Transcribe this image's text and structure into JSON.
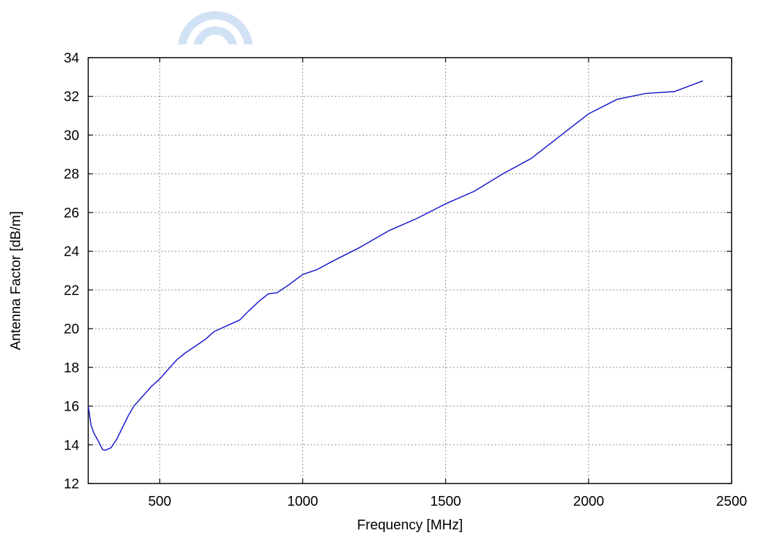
{
  "chart_data": {
    "type": "line",
    "title": "",
    "xlabel": "Frequency [MHz]",
    "ylabel": "Antenna Factor [dB/m]",
    "xlim": [
      250,
      2500
    ],
    "ylim": [
      12,
      34
    ],
    "xticks": [
      500,
      1000,
      1500,
      2000,
      2500
    ],
    "yticks": [
      12,
      14,
      16,
      18,
      20,
      22,
      24,
      26,
      28,
      30,
      32,
      34
    ],
    "grid": true,
    "legend": "none",
    "series": [
      {
        "color": "#1f1fcf",
        "points": [
          [
            250,
            16.0
          ],
          [
            260,
            15.0
          ],
          [
            270,
            14.6
          ],
          [
            285,
            14.2
          ],
          [
            300,
            13.75
          ],
          [
            310,
            13.72
          ],
          [
            330,
            13.85
          ],
          [
            350,
            14.3
          ],
          [
            370,
            14.9
          ],
          [
            390,
            15.5
          ],
          [
            410,
            16.0
          ],
          [
            440,
            16.5
          ],
          [
            470,
            17.0
          ],
          [
            500,
            17.4
          ],
          [
            530,
            17.9
          ],
          [
            560,
            18.4
          ],
          [
            590,
            18.75
          ],
          [
            620,
            19.05
          ],
          [
            660,
            19.45
          ],
          [
            690,
            19.85
          ],
          [
            720,
            20.05
          ],
          [
            750,
            20.25
          ],
          [
            780,
            20.45
          ],
          [
            810,
            20.9
          ],
          [
            850,
            21.45
          ],
          [
            880,
            21.8
          ],
          [
            910,
            21.85
          ],
          [
            950,
            22.25
          ],
          [
            1000,
            22.8
          ],
          [
            1050,
            23.05
          ],
          [
            1100,
            23.45
          ],
          [
            1200,
            24.2
          ],
          [
            1300,
            25.05
          ],
          [
            1400,
            25.7
          ],
          [
            1500,
            26.45
          ],
          [
            1600,
            27.1
          ],
          [
            1700,
            28.0
          ],
          [
            1800,
            28.8
          ],
          [
            1900,
            29.95
          ],
          [
            2000,
            31.1
          ],
          [
            2100,
            31.85
          ],
          [
            2200,
            32.15
          ],
          [
            2300,
            32.25
          ],
          [
            2400,
            32.8
          ]
        ]
      }
    ]
  },
  "colors": {
    "line": "#1f1fcf",
    "grid": "#8a8a8a",
    "watermark": "#aeccee"
  }
}
